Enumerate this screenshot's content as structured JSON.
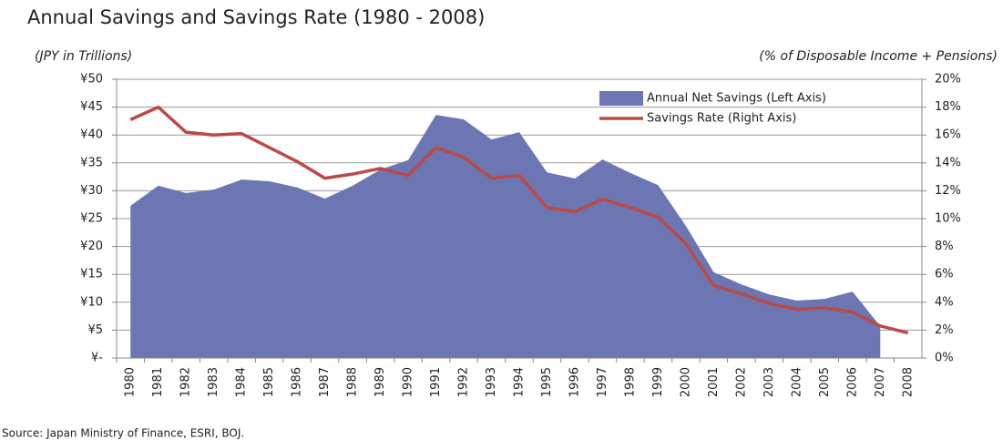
{
  "chart_data": {
    "type": "area_line",
    "title": "Annual Savings and Savings Rate (1980 - 2008)",
    "y_label": "(JPY in Trillions)",
    "y2_label": "(% of Disposable Income + Pensions)",
    "source": "Source: Japan Ministry of Finance, ESRI, BOJ.",
    "categories": [
      "1980",
      "1981",
      "1982",
      "1983",
      "1984",
      "1985",
      "1986",
      "1987",
      "1988",
      "1989",
      "1990",
      "1991",
      "1992",
      "1993",
      "1994",
      "1995",
      "1996",
      "1997",
      "1998",
      "1999",
      "2000",
      "2001",
      "2002",
      "2003",
      "2004",
      "2005",
      "2006",
      "2007",
      "2008"
    ],
    "series": [
      {
        "name": "Annual Net Savings (Left Axis)",
        "color": "#6b76b2",
        "type": "area",
        "values": [
          27.3,
          30.9,
          29.6,
          30.2,
          32,
          31.7,
          30.6,
          28.6,
          30.9,
          33.8,
          35.5,
          43.6,
          42.8,
          39.2,
          40.5,
          33.3,
          32.2,
          35.6,
          33.2,
          31,
          23.7,
          15.4,
          13.2,
          11.4,
          10.3,
          10.6,
          11.9,
          5.7,
          null
        ]
      },
      {
        "name": "Savings Rate (Right Axis)",
        "color": "#b94a48",
        "type": "line",
        "axis": "y2",
        "values": [
          17.1,
          18,
          16.2,
          16,
          16.1,
          15.1,
          14.1,
          12.9,
          13.2,
          13.6,
          13.1,
          15.1,
          14.4,
          12.9,
          13.1,
          10.8,
          10.5,
          11.4,
          10.8,
          10.1,
          8.2,
          5.2,
          4.6,
          3.9,
          3.5,
          3.6,
          3.3,
          2.3,
          1.8
        ]
      }
    ],
    "ylim": [
      0,
      50
    ],
    "yticks": [
      {
        "value": 0,
        "label": "¥-"
      },
      {
        "value": 5,
        "label": "¥5"
      },
      {
        "value": 10,
        "label": "¥10"
      },
      {
        "value": 15,
        "label": "¥15"
      },
      {
        "value": 20,
        "label": "¥20"
      },
      {
        "value": 25,
        "label": "¥25"
      },
      {
        "value": 30,
        "label": "¥30"
      },
      {
        "value": 35,
        "label": "¥35"
      },
      {
        "value": 40,
        "label": "¥40"
      },
      {
        "value": 45,
        "label": "¥45"
      },
      {
        "value": 50,
        "label": "¥50"
      }
    ],
    "y2lim": [
      0,
      20
    ],
    "y2ticks": [
      {
        "value": 0,
        "label": "0%"
      },
      {
        "value": 2,
        "label": "2%"
      },
      {
        "value": 4,
        "label": "4%"
      },
      {
        "value": 6,
        "label": "6%"
      },
      {
        "value": 8,
        "label": "8%"
      },
      {
        "value": 10,
        "label": "10%"
      },
      {
        "value": 12,
        "label": "12%"
      },
      {
        "value": 14,
        "label": "14%"
      },
      {
        "value": 16,
        "label": "16%"
      },
      {
        "value": 18,
        "label": "18%"
      },
      {
        "value": 20,
        "label": "20%"
      }
    ],
    "grid": true,
    "legend": "upper right"
  }
}
